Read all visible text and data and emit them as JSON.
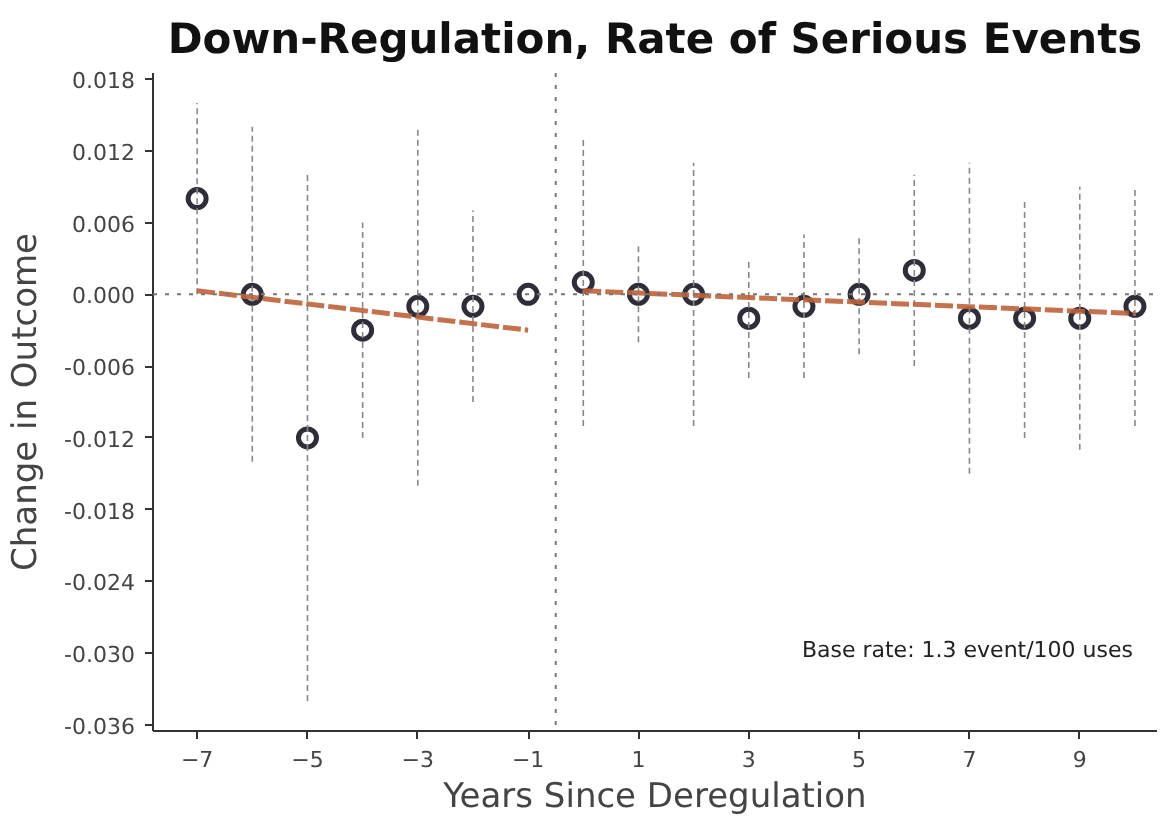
{
  "chart_data": {
    "type": "scatter",
    "title": "Down-Regulation, Rate of Serious Events",
    "xlabel": "Years Since Deregulation",
    "ylabel": "Change in Outcome",
    "annotations": [
      "Base rate: 1.3 event/100 uses"
    ],
    "xlim": [
      -7.8,
      10.4
    ],
    "xticks": [
      -7,
      -5,
      -3,
      -1,
      1,
      3,
      5,
      7,
      9
    ],
    "ylim": [
      -0.0365,
      0.0185
    ],
    "yticks": [
      {
        "value": 0.018,
        "label": "0.018"
      },
      {
        "value": 0.012,
        "label": "0.012"
      },
      {
        "value": 0.006,
        "label": "0.006"
      },
      {
        "value": 0,
        "label": "0.000"
      },
      {
        "value": -0.006,
        "label": "-0.006"
      },
      {
        "value": -0.012,
        "label": "-0.012"
      },
      {
        "value": -0.018,
        "label": "-0.018"
      },
      {
        "value": -0.024,
        "label": "-0.024"
      },
      {
        "value": -0.03,
        "label": "-0.030"
      },
      {
        "value": -0.036,
        "label": "-0.036"
      }
    ],
    "grid": false,
    "marker": "circle",
    "ref_lines": [
      {
        "axis": "y",
        "value": 0,
        "color": "#777777",
        "line_style": "dotted"
      },
      {
        "axis": "x",
        "value": -0.5,
        "color": "#777777",
        "line_style": "dotted"
      }
    ],
    "series": [
      {
        "type": "scatter",
        "color": "#2e2e3a",
        "x": [
          -7,
          -6,
          -5,
          -4,
          -3,
          -2,
          -1,
          0,
          1,
          2,
          3,
          4,
          5,
          6,
          7,
          8,
          9,
          10
        ],
        "values": [
          0.008,
          0,
          -0.012,
          -0.003,
          -0.001,
          -0.001,
          0,
          0.001,
          0,
          0,
          -0.002,
          -0.001,
          0,
          0.002,
          -0.002,
          -0.002,
          -0.002,
          -0.001
        ],
        "errors": [
          [
            0.0,
            0.016
          ],
          [
            -0.014,
            0.014
          ],
          [
            -0.034,
            0.01
          ],
          [
            -0.012,
            0.006
          ],
          [
            -0.016,
            0.014
          ],
          [
            -0.009,
            0.007
          ],
          null,
          [
            -0.011,
            0.013
          ],
          [
            -0.004,
            0.004
          ],
          [
            -0.011,
            0.011
          ],
          [
            -0.007,
            0.003
          ],
          [
            -0.007,
            0.005
          ],
          [
            -0.005,
            0.005
          ],
          [
            -0.006,
            0.01
          ],
          [
            -0.015,
            0.011
          ],
          [
            -0.012,
            0.008
          ],
          [
            -0.013,
            0.009
          ],
          [
            -0.011,
            0.009
          ]
        ]
      },
      {
        "type": "line",
        "color": "#c0623a",
        "line_style": "dashed",
        "marker": "none",
        "x": [
          -7,
          -1
        ],
        "values": [
          0.0003,
          -0.003
        ]
      },
      {
        "type": "line",
        "color": "#c0623a",
        "line_style": "dashed",
        "marker": "none",
        "x": [
          0,
          10
        ],
        "values": [
          0.0003,
          -0.0016
        ]
      }
    ]
  }
}
